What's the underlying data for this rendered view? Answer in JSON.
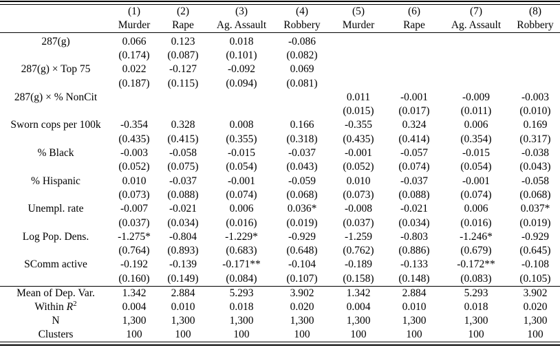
{
  "table": {
    "header": {
      "col_numbers": [
        "(1)",
        "(2)",
        "(3)",
        "(4)",
        "(5)",
        "(6)",
        "(7)",
        "(8)"
      ],
      "col_crimes": [
        "Murder",
        "Rape",
        "Ag. Assault",
        "Robbery",
        "Murder",
        "Rape",
        "Ag. Assault",
        "Robbery"
      ]
    },
    "coef_rows": [
      {
        "label": "287(g)",
        "est": [
          "0.066",
          "0.123",
          "0.018",
          "-0.086",
          "",
          "",
          "",
          ""
        ],
        "se": [
          "(0.174)",
          "(0.087)",
          "(0.101)",
          "(0.082)",
          "",
          "",
          "",
          ""
        ]
      },
      {
        "label": "287(g) × Top 75",
        "est": [
          "0.022",
          "-0.127",
          "-0.092",
          "0.069",
          "",
          "",
          "",
          ""
        ],
        "se": [
          "(0.187)",
          "(0.115)",
          "(0.094)",
          "(0.081)",
          "",
          "",
          "",
          ""
        ]
      },
      {
        "label": "287(g) × % NonCit",
        "est": [
          "",
          "",
          "",
          "",
          "0.011",
          "-0.001",
          "-0.009",
          "-0.003"
        ],
        "se": [
          "",
          "",
          "",
          "",
          "(0.015)",
          "(0.017)",
          "(0.011)",
          "(0.010)"
        ]
      },
      {
        "label": "Sworn cops per 100k",
        "est": [
          "-0.354",
          "0.328",
          "0.008",
          "0.166",
          "-0.355",
          "0.324",
          "0.006",
          "0.169"
        ],
        "se": [
          "(0.435)",
          "(0.415)",
          "(0.355)",
          "(0.318)",
          "(0.435)",
          "(0.414)",
          "(0.354)",
          "(0.317)"
        ]
      },
      {
        "label": "% Black",
        "est": [
          "-0.003",
          "-0.058",
          "-0.015",
          "-0.037",
          "-0.001",
          "-0.057",
          "-0.015",
          "-0.038"
        ],
        "se": [
          "(0.052)",
          "(0.075)",
          "(0.054)",
          "(0.043)",
          "(0.052)",
          "(0.074)",
          "(0.054)",
          "(0.043)"
        ]
      },
      {
        "label": "% Hispanic",
        "est": [
          "0.010",
          "-0.037",
          "-0.001",
          "-0.059",
          "0.010",
          "-0.037",
          "-0.001",
          "-0.058"
        ],
        "se": [
          "(0.073)",
          "(0.088)",
          "(0.074)",
          "(0.068)",
          "(0.073)",
          "(0.088)",
          "(0.074)",
          "(0.068)"
        ]
      },
      {
        "label": "Unempl. rate",
        "est": [
          "-0.007",
          "-0.021",
          "0.006",
          "0.036*",
          "-0.008",
          "-0.021",
          "0.006",
          "0.037*"
        ],
        "se": [
          "(0.037)",
          "(0.034)",
          "(0.016)",
          "(0.019)",
          "(0.037)",
          "(0.034)",
          "(0.016)",
          "(0.019)"
        ]
      },
      {
        "label": "Log Pop. Dens.",
        "est": [
          "-1.275*",
          "-0.804",
          "-1.229*",
          "-0.929",
          "-1.259",
          "-0.803",
          "-1.246*",
          "-0.929"
        ],
        "se": [
          "(0.764)",
          "(0.893)",
          "(0.683)",
          "(0.648)",
          "(0.762)",
          "(0.886)",
          "(0.679)",
          "(0.645)"
        ]
      },
      {
        "label": "SComm active",
        "est": [
          "-0.192",
          "-0.139",
          "-0.171**",
          "-0.104",
          "-0.189",
          "-0.133",
          "-0.172**",
          "-0.108"
        ],
        "se": [
          "(0.160)",
          "(0.149)",
          "(0.084)",
          "(0.107)",
          "(0.158)",
          "(0.148)",
          "(0.083)",
          "(0.105)"
        ]
      }
    ],
    "summary_rows": [
      {
        "label": "Mean of Dep. Var.",
        "values": [
          "1.342",
          "2.884",
          "5.293",
          "3.902",
          "1.342",
          "2.884",
          "5.293",
          "3.902"
        ]
      },
      {
        "label": "Within R²",
        "values": [
          "0.004",
          "0.010",
          "0.018",
          "0.020",
          "0.004",
          "0.010",
          "0.018",
          "0.020"
        ]
      },
      {
        "label": "N",
        "values": [
          "1,300",
          "1,300",
          "1,300",
          "1,300",
          "1,300",
          "1,300",
          "1,300",
          "1,300"
        ]
      },
      {
        "label": "Clusters",
        "values": [
          "100",
          "100",
          "100",
          "100",
          "100",
          "100",
          "100",
          "100"
        ]
      }
    ],
    "colors": {
      "text": "#000000",
      "background": "#ffffff",
      "rule": "#000000"
    }
  }
}
